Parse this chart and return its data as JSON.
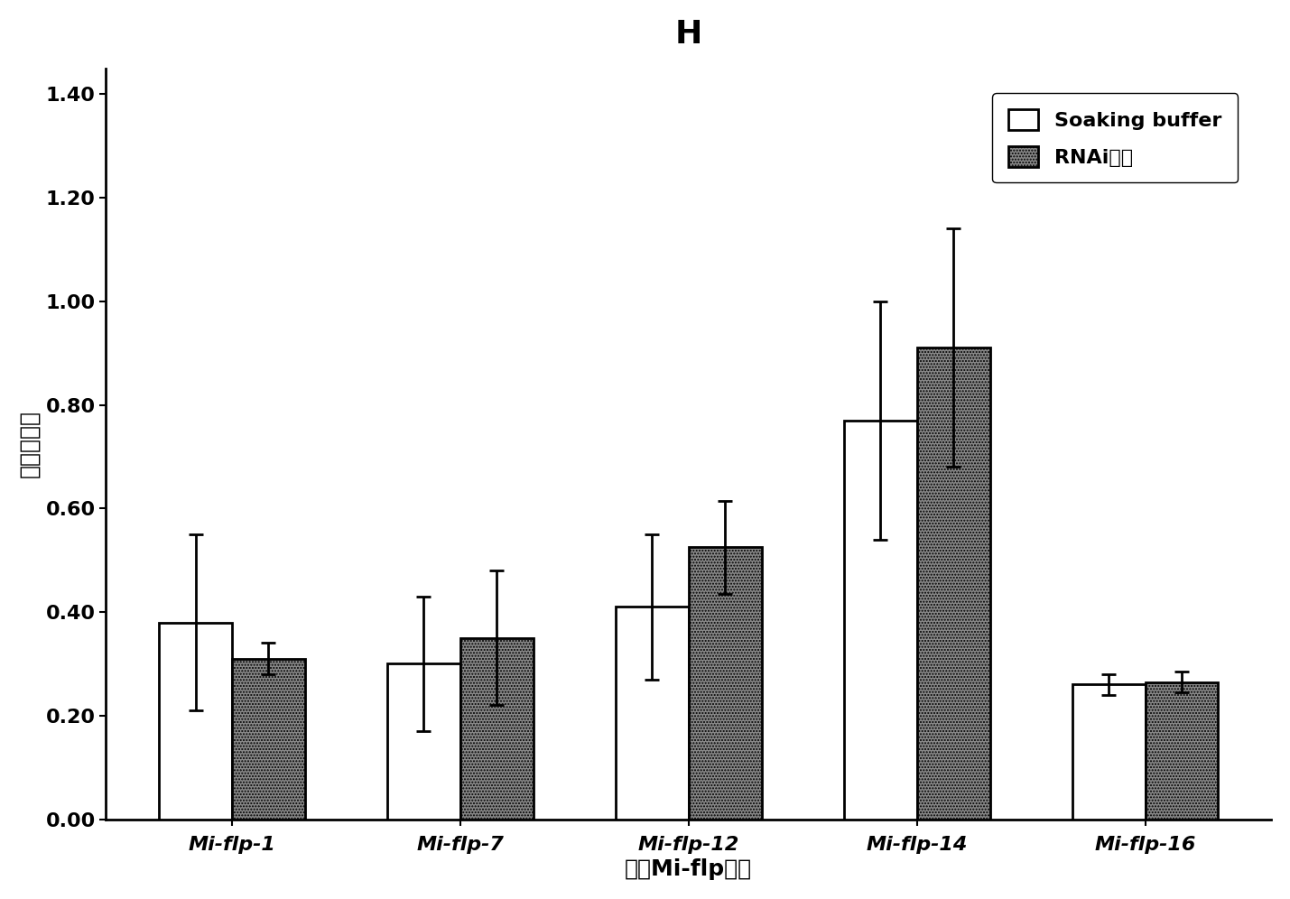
{
  "title": "H",
  "xlabel_chinese": "不同",
  "xlabel_italic": "Mi-flp",
  "xlabel_chinese2": "基因",
  "ylabel": "相对表达量",
  "categories": [
    "Mi-flp-1",
    "Mi-flp-7",
    "Mi-flp-12",
    "Mi-flp-14",
    "Mi-flp-16"
  ],
  "soaking_values": [
    0.38,
    0.3,
    0.41,
    0.77,
    0.26
  ],
  "soaking_errors": [
    0.17,
    0.13,
    0.14,
    0.23,
    0.02
  ],
  "rnai_values": [
    0.31,
    0.35,
    0.525,
    0.91,
    0.265
  ],
  "rnai_errors": [
    0.03,
    0.13,
    0.09,
    0.23,
    0.02
  ],
  "soaking_color": "#FFFFFF",
  "rnai_color": "#888888",
  "bar_edge_color": "#000000",
  "ylim": [
    0.0,
    1.45
  ],
  "yticks": [
    0.0,
    0.2,
    0.4,
    0.6,
    0.8,
    1.0,
    1.2,
    1.4
  ],
  "bar_width": 0.32,
  "legend_soaking": "Soaking buffer",
  "legend_rnai": "RNAi处理",
  "title_fontsize": 26,
  "axis_label_fontsize": 18,
  "tick_fontsize": 16,
  "legend_fontsize": 16,
  "background_color": "#FFFFFF",
  "hatch_pattern": "....."
}
